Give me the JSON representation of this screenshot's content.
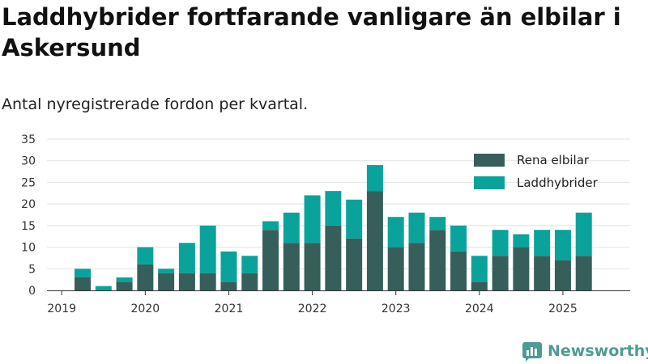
{
  "header": {
    "title": "Laddhybrider fortfarande vanligare än elbilar i Askersund",
    "subtitle": "Antal nyregistrerade fordon per kvartal."
  },
  "brand": {
    "name": "Newsworthy",
    "icon": "newsworthy-logo-icon"
  },
  "colors": {
    "rena_elbilar": "#365f5b",
    "laddhybrider": "#0aa39c",
    "grid": "#e2e2e2",
    "axis": "#333333"
  },
  "chart_data": {
    "type": "bar",
    "stacked": true,
    "categories": [
      "2019 Q2",
      "2019 Q3",
      "2019 Q4",
      "2020 Q1",
      "2020 Q2",
      "2020 Q3",
      "2020 Q4",
      "2021 Q1",
      "2021 Q2",
      "2021 Q3",
      "2021 Q4",
      "2022 Q1",
      "2022 Q2",
      "2022 Q3",
      "2022 Q4",
      "2023 Q1",
      "2023 Q2",
      "2023 Q3",
      "2023 Q4",
      "2024 Q1",
      "2024 Q2",
      "2024 Q3",
      "2024 Q4",
      "2025 Q1",
      "2025 Q2"
    ],
    "series": [
      {
        "name": "Rena elbilar",
        "values": [
          3,
          0,
          2,
          6,
          4,
          4,
          4,
          2,
          4,
          14,
          11,
          11,
          15,
          12,
          23,
          10,
          11,
          14,
          9,
          2,
          8,
          10,
          8,
          7,
          8
        ]
      },
      {
        "name": "Laddhybrider",
        "values": [
          2,
          1,
          1,
          4,
          1,
          7,
          11,
          7,
          4,
          2,
          7,
          11,
          8,
          9,
          6,
          7,
          7,
          3,
          6,
          6,
          6,
          3,
          6,
          7,
          10
        ]
      }
    ],
    "x_tick_labels": [
      "2019",
      "2020",
      "2021",
      "2022",
      "2023",
      "2024",
      "2025"
    ],
    "y_ticks": [
      0,
      5,
      10,
      15,
      20,
      25,
      30,
      35
    ],
    "ylim": [
      0,
      35
    ],
    "grid": true,
    "legend_position": "top-right"
  }
}
